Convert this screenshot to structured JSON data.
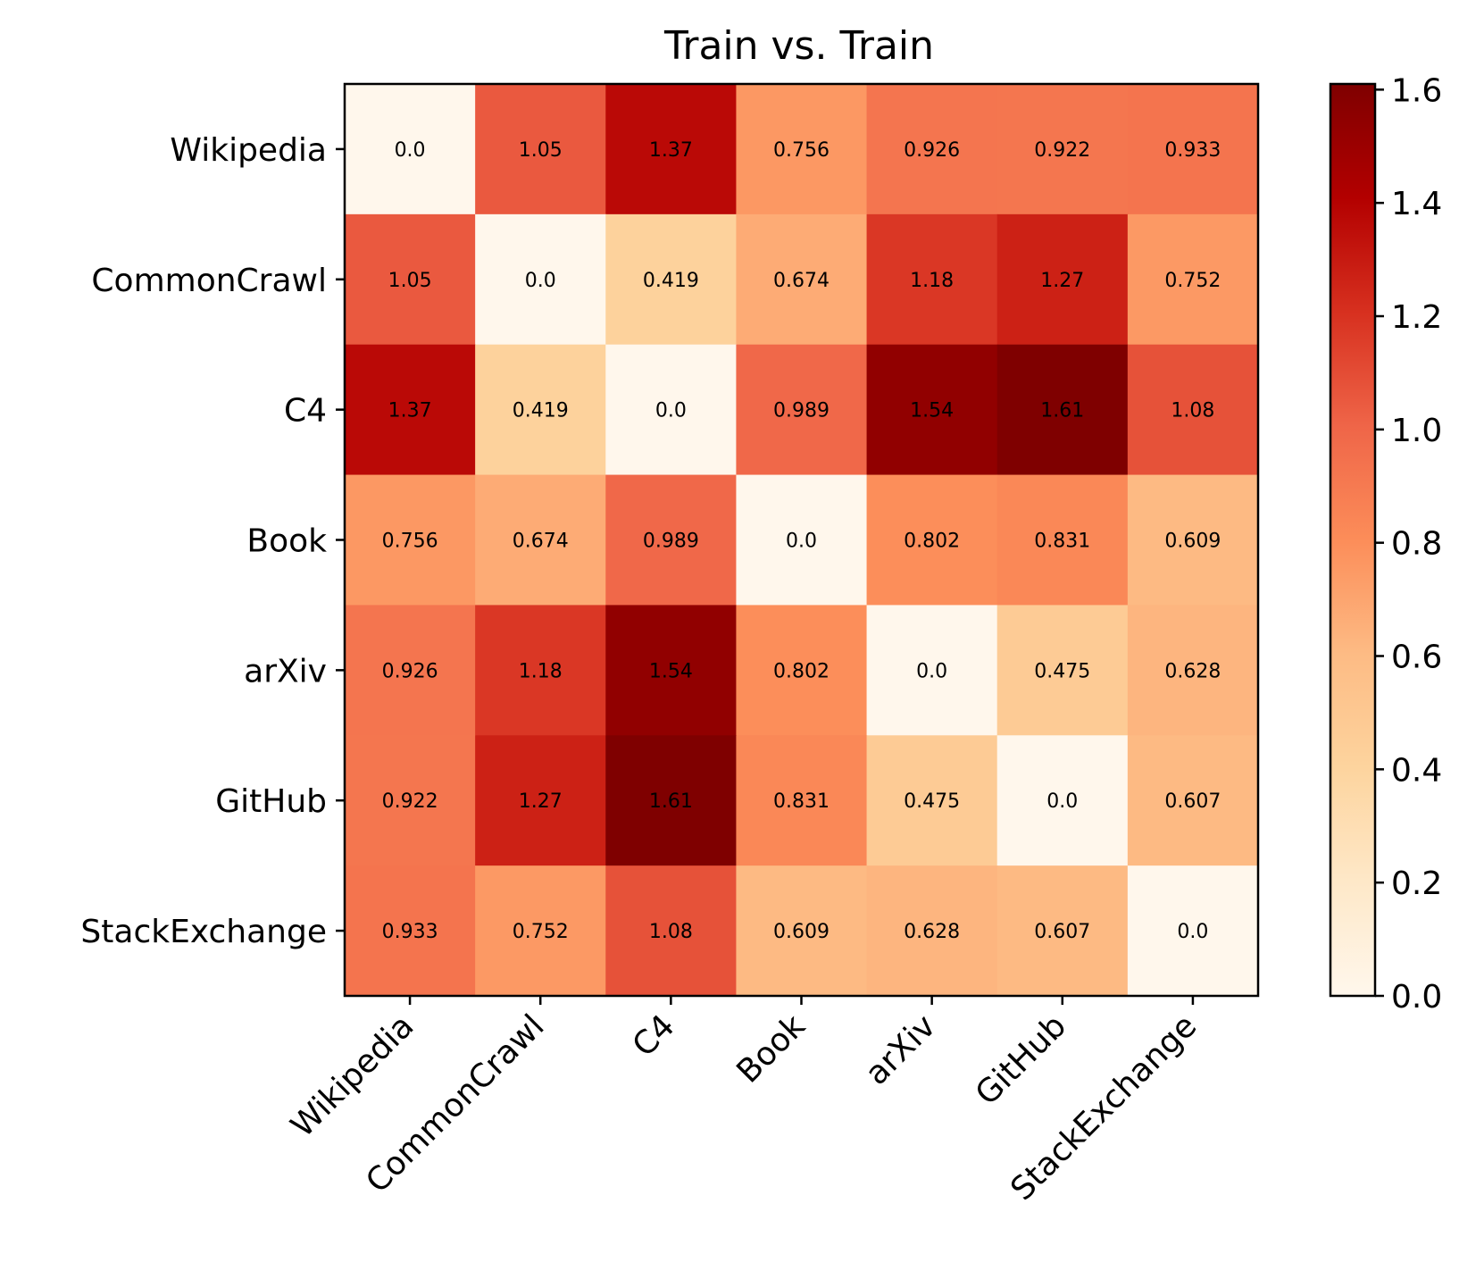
{
  "chart_data": {
    "type": "heatmap",
    "title": "Train vs. Train",
    "xlabel": "",
    "ylabel": "",
    "x_categories": [
      "Wikipedia",
      "CommonCrawl",
      "C4",
      "Book",
      "arXiv",
      "GitHub",
      "StackExchange"
    ],
    "y_categories": [
      "Wikipedia",
      "CommonCrawl",
      "C4",
      "Book",
      "arXiv",
      "GitHub",
      "StackExchange"
    ],
    "values": [
      [
        0.0,
        1.05,
        1.37,
        0.756,
        0.926,
        0.922,
        0.933
      ],
      [
        1.05,
        0.0,
        0.419,
        0.674,
        1.18,
        1.27,
        0.752
      ],
      [
        1.37,
        0.419,
        0.0,
        0.989,
        1.54,
        1.61,
        1.08
      ],
      [
        0.756,
        0.674,
        0.989,
        0.0,
        0.802,
        0.831,
        0.609
      ],
      [
        0.926,
        1.18,
        1.54,
        0.802,
        0.0,
        0.475,
        0.628
      ],
      [
        0.922,
        1.27,
        1.61,
        0.831,
        0.475,
        0.0,
        0.607
      ],
      [
        0.933,
        0.752,
        1.08,
        0.609,
        0.628,
        0.607,
        0.0
      ]
    ],
    "cell_labels": [
      [
        "0.0",
        "1.05",
        "1.37",
        "0.756",
        "0.926",
        "0.922",
        "0.933"
      ],
      [
        "1.05",
        "0.0",
        "0.419",
        "0.674",
        "1.18",
        "1.27",
        "0.752"
      ],
      [
        "1.37",
        "0.419",
        "0.0",
        "0.989",
        "1.54",
        "1.61",
        "1.08"
      ],
      [
        "0.756",
        "0.674",
        "0.989",
        "0.0",
        "0.802",
        "0.831",
        "0.609"
      ],
      [
        "0.926",
        "1.18",
        "1.54",
        "0.802",
        "0.0",
        "0.475",
        "0.628"
      ],
      [
        "0.922",
        "1.27",
        "1.61",
        "0.831",
        "0.475",
        "0.0",
        "0.607"
      ],
      [
        "0.933",
        "0.752",
        "1.08",
        "0.609",
        "0.628",
        "0.607",
        "0.0"
      ]
    ],
    "colormap": "OrRd",
    "colormap_stops": [
      "#fff7ec",
      "#fee8c8",
      "#fdd49e",
      "#fdbb84",
      "#fc8d59",
      "#ef6548",
      "#d7301f",
      "#b30000",
      "#7f0000"
    ],
    "vmin": 0.0,
    "vmax": 1.61,
    "colorbar": {
      "ticks": [
        0.0,
        0.2,
        0.4,
        0.6,
        0.8,
        1.0,
        1.2,
        1.4,
        1.6
      ],
      "tick_labels": [
        "0.0",
        "0.2",
        "0.4",
        "0.6",
        "0.8",
        "1.0",
        "1.2",
        "1.4",
        "1.6"
      ]
    }
  }
}
